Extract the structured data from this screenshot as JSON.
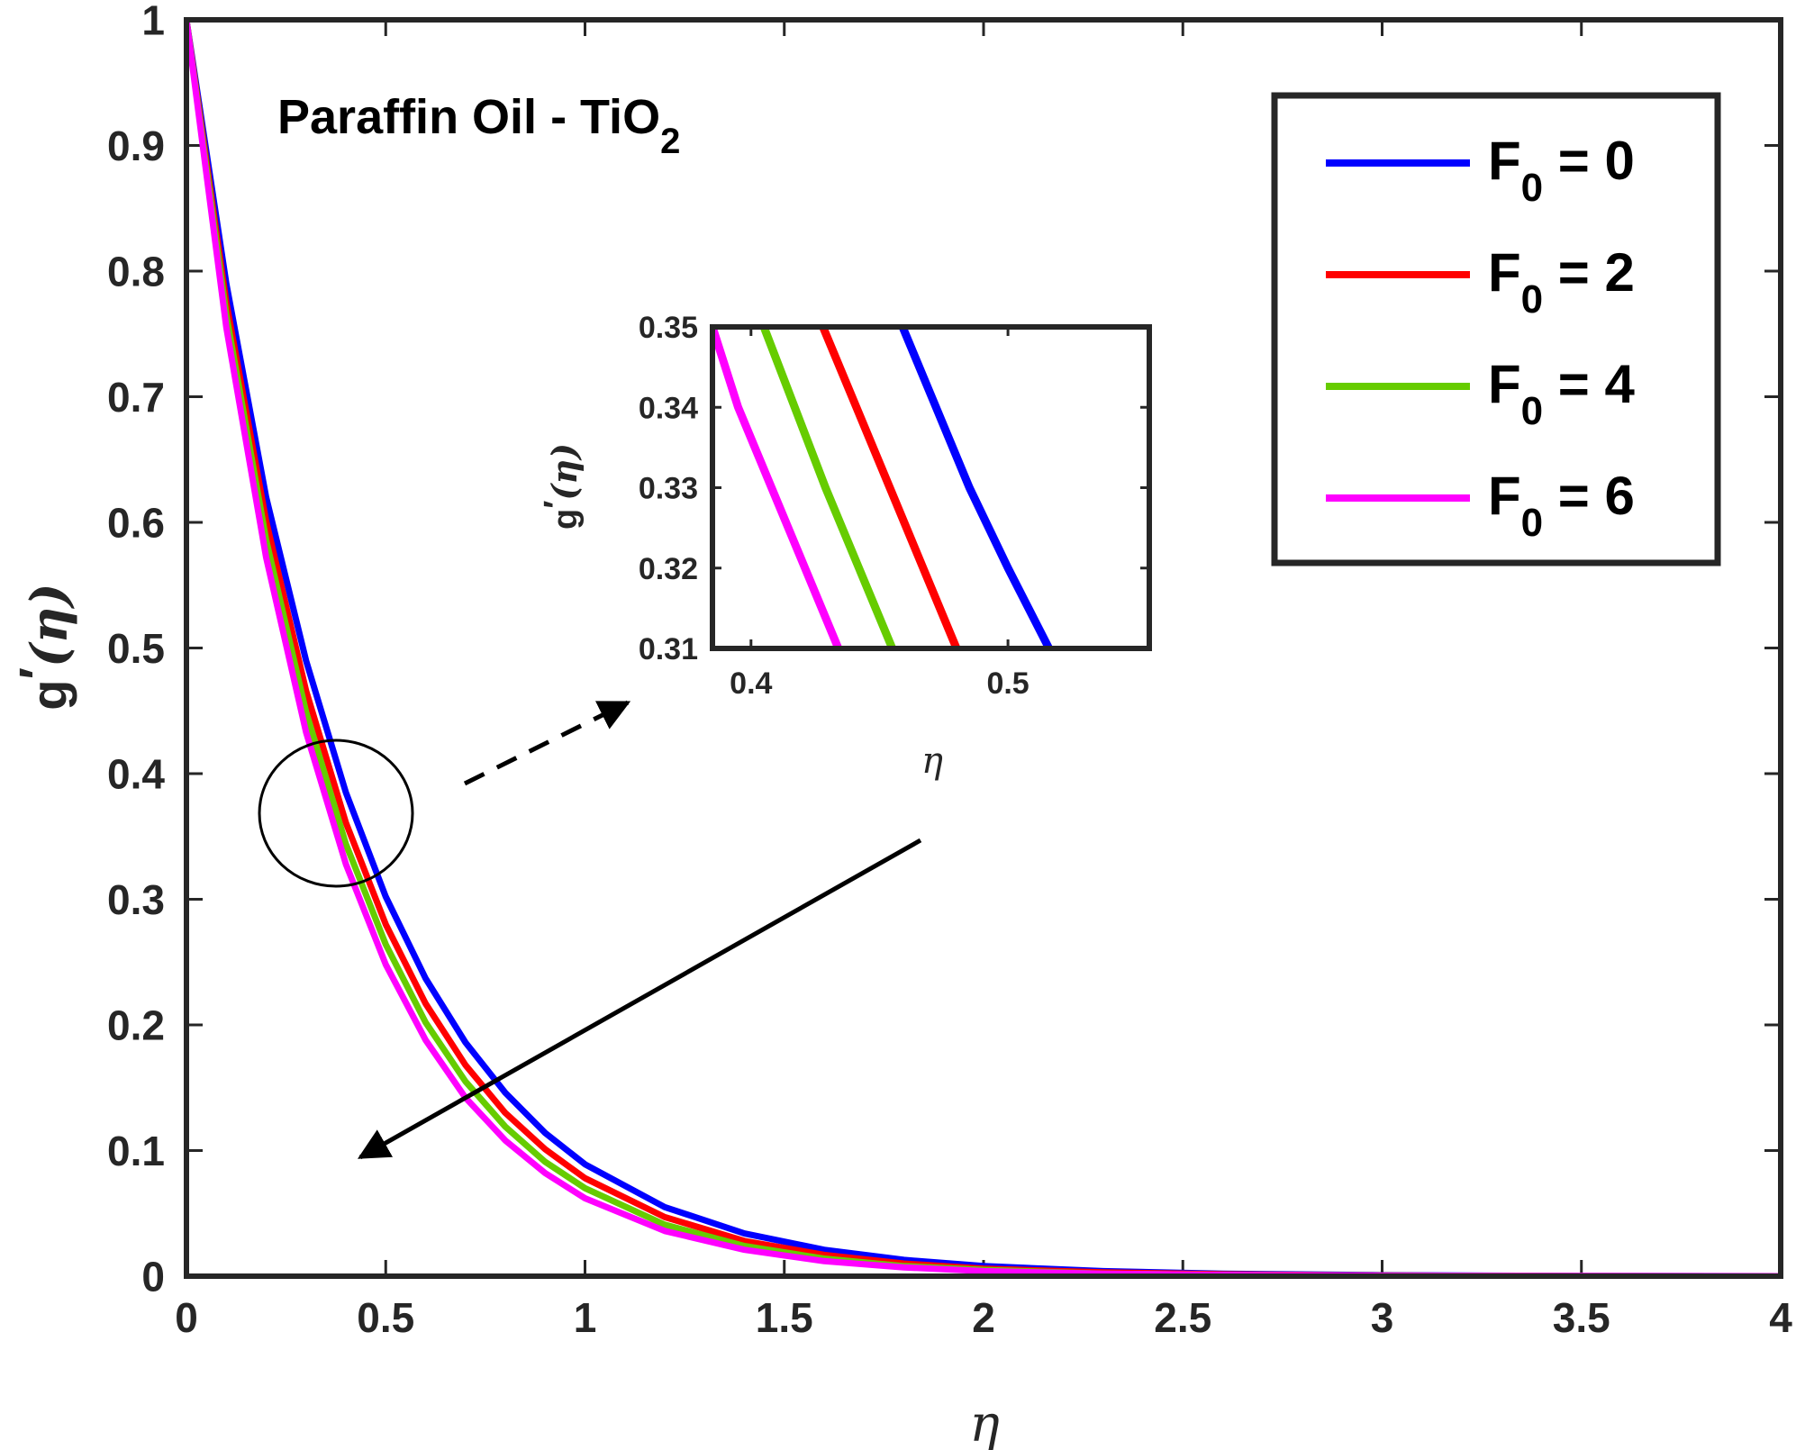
{
  "chart_data": [
    {
      "id": "main",
      "type": "line",
      "title": "",
      "annotation": {
        "main": "Paraffin Oil - TiO",
        "sub": "2"
      },
      "xlabel": "η",
      "ylabel": {
        "main": "g",
        "prime": "′",
        "arg": "(η)"
      },
      "xlim": [
        0,
        4
      ],
      "ylim": [
        0,
        1
      ],
      "xticks": [
        0,
        0.5,
        1,
        1.5,
        2,
        2.5,
        3,
        3.5,
        4
      ],
      "xtick_labels": [
        "0",
        "0.5",
        "1",
        "1.5",
        "2",
        "2.5",
        "3",
        "3.5",
        "4"
      ],
      "yticks": [
        0,
        0.1,
        0.2,
        0.3,
        0.4,
        0.5,
        0.6,
        0.7,
        0.8,
        0.9,
        1
      ],
      "ytick_labels": [
        "0",
        "0.1",
        "0.2",
        "0.3",
        "0.4",
        "0.5",
        "0.6",
        "0.7",
        "0.8",
        "0.9",
        "1"
      ],
      "grid": false,
      "legend_position": "top-right",
      "series": [
        {
          "name": "F = 0",
          "label": {
            "main": "F",
            "sub": "0",
            "value": " = 0"
          },
          "color": "#0000ff",
          "x": [
            0,
            0.1,
            0.2,
            0.3,
            0.4,
            0.5,
            0.6,
            0.7,
            0.8,
            0.9,
            1.0,
            1.2,
            1.4,
            1.6,
            1.8,
            2.0,
            2.3,
            2.6,
            3.0,
            3.5,
            4.0
          ],
          "y": [
            1,
            0.79,
            0.62,
            0.49,
            0.385,
            0.302,
            0.237,
            0.186,
            0.146,
            0.114,
            0.089,
            0.055,
            0.034,
            0.021,
            0.013,
            0.008,
            0.004,
            0.002,
            0.0008,
            0.0002,
            0
          ]
        },
        {
          "name": "F = 2",
          "label": {
            "main": "F",
            "sub": "0",
            "value": " = 2"
          },
          "color": "#ff0000",
          "x": [
            0,
            0.1,
            0.2,
            0.3,
            0.4,
            0.5,
            0.6,
            0.7,
            0.8,
            0.9,
            1.0,
            1.2,
            1.4,
            1.6,
            1.8,
            2.0,
            2.3,
            2.6,
            3.0,
            3.5,
            4.0
          ],
          "y": [
            1,
            0.775,
            0.601,
            0.466,
            0.361,
            0.28,
            0.217,
            0.168,
            0.13,
            0.101,
            0.078,
            0.047,
            0.028,
            0.017,
            0.01,
            0.006,
            0.003,
            0.0015,
            0.0005,
            0.0001,
            0
          ]
        },
        {
          "name": "F = 4",
          "label": {
            "main": "F",
            "sub": "0",
            "value": " = 4"
          },
          "color": "#66cc00",
          "x": [
            0,
            0.1,
            0.2,
            0.3,
            0.4,
            0.5,
            0.6,
            0.7,
            0.8,
            0.9,
            1.0,
            1.2,
            1.4,
            1.6,
            1.8,
            2.0,
            2.3,
            2.6,
            3.0,
            3.5,
            4.0
          ],
          "y": [
            1,
            0.765,
            0.586,
            0.449,
            0.344,
            0.264,
            0.202,
            0.155,
            0.119,
            0.091,
            0.07,
            0.041,
            0.024,
            0.014,
            0.008,
            0.005,
            0.002,
            0.001,
            0.0004,
            0.0001,
            0
          ]
        },
        {
          "name": "F = 6",
          "label": {
            "main": "F",
            "sub": "0",
            "value": " = 6"
          },
          "color": "#ff00ff",
          "x": [
            0,
            0.1,
            0.2,
            0.3,
            0.4,
            0.5,
            0.6,
            0.7,
            0.8,
            0.9,
            1.0,
            1.2,
            1.4,
            1.6,
            1.8,
            2.0,
            2.3,
            2.6,
            3.0,
            3.5,
            4.0
          ],
          "y": [
            1,
            0.755,
            0.572,
            0.433,
            0.328,
            0.248,
            0.188,
            0.142,
            0.108,
            0.082,
            0.062,
            0.036,
            0.021,
            0.012,
            0.007,
            0.004,
            0.002,
            0.001,
            0.0003,
            0.0001,
            0
          ]
        }
      ]
    },
    {
      "id": "inset",
      "type": "line",
      "title": "",
      "xlabel": "η",
      "ylabel": {
        "main": "g",
        "prime": "′",
        "arg": "(η)"
      },
      "xlim": [
        0.385,
        0.555
      ],
      "ylim": [
        0.31,
        0.35
      ],
      "xticks": [
        0.4,
        0.5
      ],
      "xtick_labels": [
        "0.4",
        "0.5"
      ],
      "yticks": [
        0.31,
        0.32,
        0.33,
        0.34,
        0.35
      ],
      "ytick_labels": [
        "0.31",
        "0.32",
        "0.33",
        "0.34",
        "0.35"
      ],
      "grid": false,
      "series": [
        {
          "name": "F = 0",
          "color": "#0000ff",
          "x": [
            0.459,
            0.472,
            0.485,
            0.5,
            0.516
          ],
          "y": [
            0.35,
            0.34,
            0.33,
            0.32,
            0.31
          ]
        },
        {
          "name": "F = 2",
          "color": "#ff0000",
          "x": [
            0.428,
            0.441,
            0.454,
            0.467,
            0.48
          ],
          "y": [
            0.35,
            0.34,
            0.33,
            0.32,
            0.31
          ]
        },
        {
          "name": "F = 4",
          "color": "#66cc00",
          "x": [
            0.405,
            0.417,
            0.429,
            0.442,
            0.455
          ],
          "y": [
            0.35,
            0.34,
            0.33,
            0.32,
            0.31
          ]
        },
        {
          "name": "F = 6",
          "color": "#ff00ff",
          "x": [
            0.385,
            0.395,
            0.408,
            0.421,
            0.434
          ],
          "y": [
            0.35,
            0.34,
            0.33,
            0.32,
            0.31
          ]
        }
      ]
    }
  ]
}
